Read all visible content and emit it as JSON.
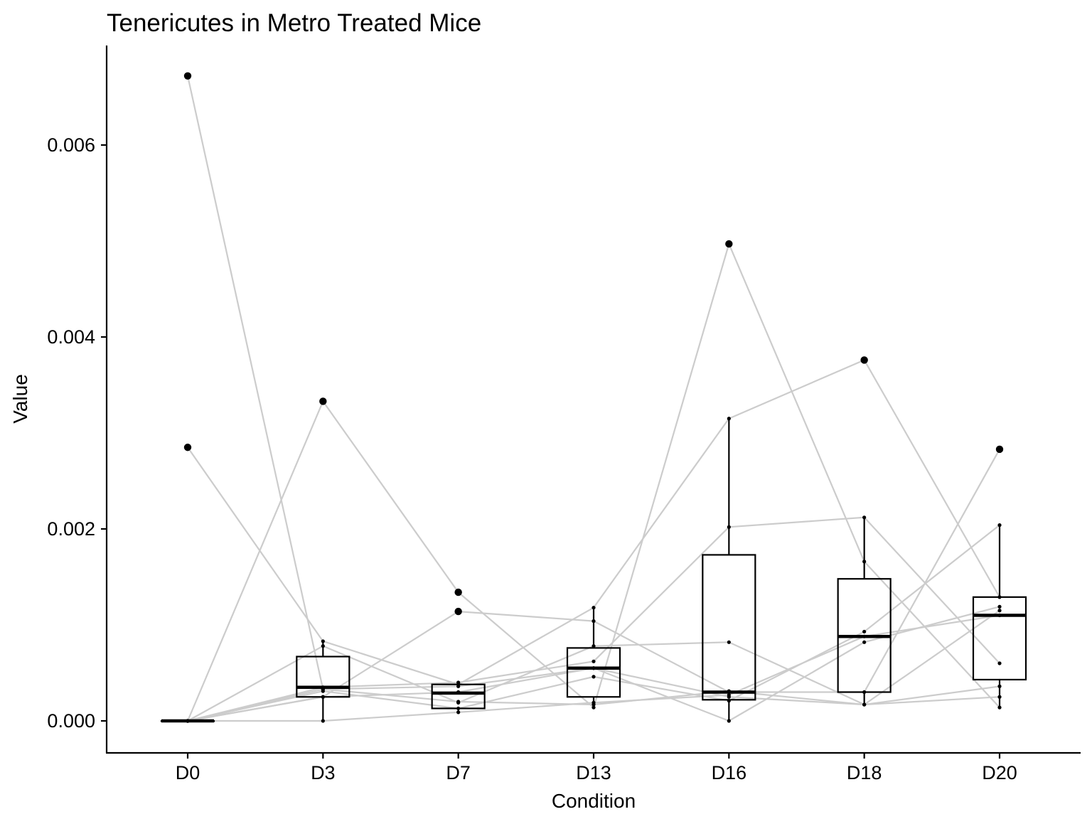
{
  "chart_data": {
    "type": "box",
    "title": "Tenericutes in Metro Treated Mice",
    "xlabel": "Condition",
    "ylabel": "Value",
    "categories": [
      "D0",
      "D3",
      "D7",
      "D13",
      "D16",
      "D18",
      "D20"
    ],
    "yticks": [
      0.0,
      0.002,
      0.004,
      0.006
    ],
    "ytick_labels": [
      "0.000",
      "0.002",
      "0.004",
      "0.006"
    ],
    "ylim": [
      -0.00018,
      0.00705
    ],
    "grid": false,
    "legend": "none",
    "colors": {
      "lines": "#cccccc",
      "box": "#000000",
      "points": "#000000"
    },
    "boxes": [
      {
        "category": "D0",
        "lower_whisker": 0.0,
        "q1": 0.0,
        "median": 0.0,
        "q3": 0.0,
        "upper_whisker": 0.0,
        "outliers": [
          0.00672,
          0.00285
        ]
      },
      {
        "category": "D3",
        "lower_whisker": 0.0,
        "q1": 0.00025,
        "median": 0.00035,
        "q3": 0.00067,
        "upper_whisker": 0.00083,
        "outliers": [
          0.00333
        ]
      },
      {
        "category": "D7",
        "lower_whisker": 9e-05,
        "q1": 0.00013,
        "median": 0.00029,
        "q3": 0.00038,
        "upper_whisker": 0.0004,
        "outliers": [
          0.00134,
          0.00114
        ]
      },
      {
        "category": "D13",
        "lower_whisker": 0.00014,
        "q1": 0.00025,
        "median": 0.00055,
        "q3": 0.00076,
        "upper_whisker": 0.00118,
        "outliers": []
      },
      {
        "category": "D16",
        "lower_whisker": 0.0,
        "q1": 0.00022,
        "median": 0.0003,
        "q3": 0.00173,
        "upper_whisker": 0.00315,
        "outliers": [
          0.00497
        ]
      },
      {
        "category": "D18",
        "lower_whisker": 0.00017,
        "q1": 0.0003,
        "median": 0.00088,
        "q3": 0.00148,
        "upper_whisker": 0.00212,
        "outliers": [
          0.00376
        ]
      },
      {
        "category": "D20",
        "lower_whisker": 0.00014,
        "q1": 0.00043,
        "median": 0.0011,
        "q3": 0.00129,
        "upper_whisker": 0.00204,
        "outliers": [
          0.00283
        ]
      }
    ],
    "series": [
      {
        "values": [
          0.00672,
          0.00033,
          0.00036,
          0.00055,
          0.00025,
          0.00017,
          0.00115
        ]
      },
      {
        "values": [
          0.00285,
          0.00083,
          0.00038,
          0.00118,
          0.00315,
          0.00376,
          0.00129
        ]
      },
      {
        "values": [
          0.0,
          0.00333,
          0.00134,
          0.00014,
          0.00497,
          0.00166,
          0.00014
        ]
      },
      {
        "values": [
          0.0,
          0.00035,
          0.0004,
          0.00062,
          0.00202,
          0.00212,
          0.0006
        ]
      },
      {
        "values": [
          0.0,
          0.00025,
          0.00114,
          0.00104,
          0.0003,
          0.0003,
          0.00283
        ]
      },
      {
        "values": [
          0.0,
          0.00078,
          0.00019,
          0.00078,
          0.00082,
          0.00017,
          0.00036
        ]
      },
      {
        "values": [
          0.0,
          0.00031,
          0.00013,
          0.00046,
          0.00021,
          0.00093,
          0.00204
        ]
      },
      {
        "values": [
          0.0,
          0.0,
          9e-05,
          0.00019,
          0.00027,
          0.00088,
          0.0011
        ]
      },
      {
        "values": [
          0.0,
          0.00025,
          0.0003,
          0.00055,
          0.0,
          0.00082,
          0.00119
        ]
      },
      {
        "values": [
          0.0,
          0.00033,
          0.0002,
          0.00017,
          0.00031,
          0.00017,
          0.00025
        ]
      }
    ]
  }
}
